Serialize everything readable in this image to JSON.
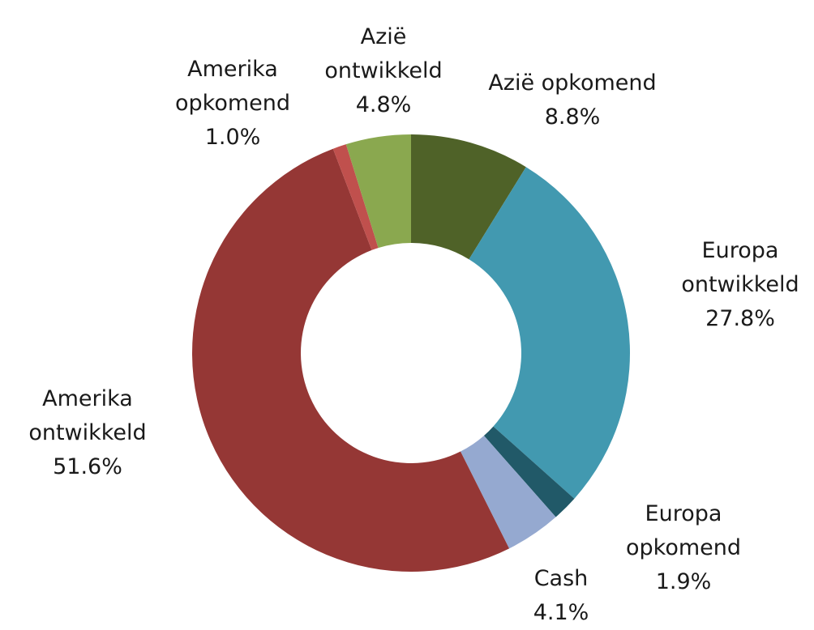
{
  "chart_data": {
    "type": "donut",
    "categories": [
      "Azië opkomend",
      "Europa ontwikkeld",
      "Europa opkomend",
      "Cash",
      "Amerika ontwikkeld",
      "Amerika opkomend",
      "Azië ontwikkeld"
    ],
    "values": [
      8.8,
      27.8,
      1.9,
      4.1,
      51.6,
      1.0,
      4.8
    ],
    "value_labels": [
      "8.8%",
      "27.8%",
      "1.9%",
      "4.1%",
      "51.6%",
      "1.0%",
      "4.8%"
    ],
    "colors": [
      "#4f6228",
      "#4299b0",
      "#215968",
      "#95a9d0",
      "#953735",
      "#c0504d",
      "#8aa84f"
    ]
  }
}
